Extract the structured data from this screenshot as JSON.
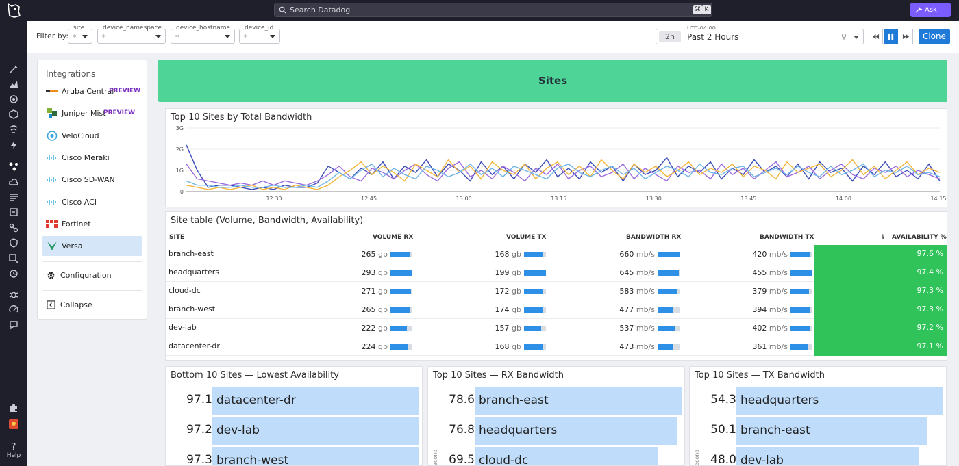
{
  "topbar": {
    "search_placeholder": "Search Datadog",
    "kbd_cmd": "⌘",
    "kbd_k": "K",
    "ask_label": "Ask Bits"
  },
  "filters": {
    "label": "Filter by:",
    "vars": [
      {
        "name": "site",
        "value": "*"
      },
      {
        "name": "device_namespace",
        "value": "*"
      },
      {
        "name": "device_hostname",
        "value": "*"
      },
      {
        "name": "device_id",
        "value": "*"
      }
    ]
  },
  "time": {
    "timezone": "UTC-04:00",
    "badge": "2h",
    "label": "Past 2 Hours",
    "clone_label": "Clone"
  },
  "integrations": {
    "title": "Integrations",
    "items": [
      {
        "name": "Aruba Central",
        "badge": "PREVIEW",
        "logo": "aruba-logo"
      },
      {
        "name": "Juniper Mist",
        "badge": "PREVIEW",
        "logo": "juniper-logo"
      },
      {
        "name": "VeloCloud",
        "badge": "",
        "logo": "velocloud-logo"
      },
      {
        "name": "Cisco Meraki",
        "badge": "",
        "logo": "cisco-logo"
      },
      {
        "name": "Cisco SD-WAN",
        "badge": "",
        "logo": "cisco-logo"
      },
      {
        "name": "Cisco ACI",
        "badge": "",
        "logo": "cisco-logo"
      },
      {
        "name": "Fortinet",
        "badge": "",
        "logo": "fortinet-logo"
      },
      {
        "name": "Versa",
        "badge": "",
        "logo": "versa-logo",
        "active": true
      }
    ],
    "configuration_label": "Configuration",
    "collapse_label": "Collapse"
  },
  "hero": {
    "title": "Sites"
  },
  "timeseries": {
    "title": "Top 10 Sites by Total Bandwidth"
  },
  "chart_data": {
    "type": "line",
    "title": "Top 10 Sites by Total Bandwidth",
    "x_ticks": [
      "12:30",
      "12:45",
      "13:00",
      "13:15",
      "13:30",
      "13:45",
      "14:00",
      "14:15"
    ],
    "y_ticks": [
      "0",
      "1G",
      "2G",
      "3G"
    ],
    "ylim": [
      0,
      3
    ],
    "y_unit": "G",
    "series": [
      {
        "color": "#3b4cb8",
        "values": [
          2.2,
          1.0,
          0.2,
          0.3,
          0.3,
          0.2,
          0.1,
          0.2,
          0.1,
          0.3,
          0.2,
          0.2,
          0.4,
          1.2,
          0.9,
          0.6,
          1.1,
          0.8,
          1.4,
          0.6,
          1.2,
          0.9,
          1.5,
          0.7,
          1.3,
          1.0,
          0.5,
          1.4,
          0.8,
          1.2,
          0.6,
          1.3,
          0.9,
          1.5,
          0.7,
          1.1,
          0.6,
          1.4,
          0.9,
          1.2,
          0.5,
          1.3,
          0.8,
          1.0,
          1.6,
          0.7,
          1.2,
          0.9,
          1.4,
          0.6,
          1.1,
          0.8,
          1.5,
          0.9,
          1.2,
          0.7,
          1.3,
          0.6,
          1.4,
          0.9,
          1.1,
          0.5,
          1.2,
          0.8,
          1.4,
          0.7,
          1.0,
          0.6,
          1.3,
          0.5
        ]
      },
      {
        "color": "#9b6ae0",
        "values": [
          1.3,
          0.6,
          0.5,
          0.4,
          0.3,
          0.4,
          0.3,
          0.5,
          0.3,
          0.5,
          0.4,
          0.3,
          0.5,
          0.8,
          1.2,
          0.7,
          0.5,
          1.1,
          0.9,
          0.6,
          1.0,
          1.3,
          0.8,
          0.5,
          1.1,
          1.4,
          0.7,
          1.0,
          0.6,
          1.2,
          0.9,
          0.5,
          1.1,
          0.8,
          1.3,
          0.6,
          1.0,
          1.2,
          0.7,
          0.9,
          1.3,
          0.6,
          1.1,
          0.8,
          0.5,
          1.2,
          0.9,
          1.0,
          0.6,
          1.3,
          0.8,
          1.1,
          0.6,
          1.0,
          1.4,
          0.7,
          0.9,
          1.2,
          0.6,
          1.0,
          1.3,
          0.8,
          0.6,
          1.1,
          0.9,
          1.2,
          0.7,
          1.0,
          0.8,
          0.6
        ]
      },
      {
        "color": "#f4b63a",
        "values": [
          0.3,
          0.2,
          0.1,
          0.2,
          0.1,
          0.2,
          0.3,
          0.1,
          0.2,
          0.1,
          0.3,
          0.2,
          0.1,
          0.3,
          0.7,
          1.0,
          1.4,
          0.8,
          1.2,
          0.9,
          0.5,
          1.3,
          1.0,
          0.7,
          1.5,
          0.9,
          1.2,
          0.6,
          1.4,
          1.0,
          0.8,
          1.3,
          0.6,
          1.1,
          1.4,
          0.8,
          1.2,
          0.7,
          1.5,
          1.0,
          0.6,
          1.3,
          0.9,
          1.2,
          0.7,
          1.0,
          1.4,
          0.8,
          1.1,
          0.9,
          1.3,
          0.7,
          1.2,
          1.0,
          0.6,
          1.4,
          0.9,
          1.1,
          1.3,
          0.7,
          1.0,
          1.5,
          0.8,
          1.2,
          0.6,
          1.0,
          1.4,
          0.8,
          1.1,
          0.9
        ]
      },
      {
        "color": "#6fb5e8",
        "values": [
          0.5,
          0.3,
          0.3,
          0.2,
          0.2,
          0.3,
          0.2,
          0.2,
          0.3,
          0.2,
          0.2,
          0.3,
          0.2,
          0.5,
          0.9,
          0.6,
          1.0,
          1.3,
          0.7,
          1.1,
          0.8,
          0.6,
          1.2,
          1.0,
          0.7,
          0.9,
          1.3,
          0.8,
          1.1,
          0.7,
          1.2,
          1.0,
          0.8,
          0.6,
          1.1,
          1.3,
          0.9,
          0.7,
          1.0,
          1.2,
          0.8,
          1.1,
          0.6,
          0.9,
          1.2,
          1.0,
          0.7,
          1.3,
          0.9,
          0.8,
          1.1,
          1.2,
          0.7,
          0.9,
          1.1,
          0.8,
          1.2,
          0.9,
          0.7,
          1.2,
          0.8,
          1.0,
          1.3,
          0.7,
          1.0,
          0.9,
          1.2,
          0.8,
          0.9,
          0.7
        ]
      }
    ]
  },
  "site_table": {
    "title": "Site table (Volume, Bandwidth, Availability)",
    "headers": [
      "SITE",
      "VOLUME RX",
      "VOLUME TX",
      "BANDWIDTH RX",
      "BANDWIDTH TX",
      "AVAILABILITY %"
    ],
    "rows": [
      {
        "site": "branch-east",
        "vrx": "265",
        "vrx_u": "gb",
        "vrx_f": 0.9,
        "vtx": "168",
        "vtx_u": "gb",
        "vtx_f": 0.85,
        "brx": "660",
        "brx_u": "mb/s",
        "brx_f": 1.0,
        "btx": "420",
        "btx_u": "mb/s",
        "btx_f": 0.92,
        "avail": "97.6 %"
      },
      {
        "site": "headquarters",
        "vrx": "293",
        "vrx_u": "gb",
        "vrx_f": 1.0,
        "vtx": "199",
        "vtx_u": "gb",
        "vtx_f": 1.0,
        "brx": "645",
        "brx_u": "mb/s",
        "brx_f": 0.98,
        "btx": "455",
        "btx_u": "mb/s",
        "btx_f": 1.0,
        "avail": "97.4 %"
      },
      {
        "site": "cloud-dc",
        "vrx": "271",
        "vrx_u": "gb",
        "vrx_f": 0.93,
        "vtx": "172",
        "vtx_u": "gb",
        "vtx_f": 0.86,
        "brx": "583",
        "brx_u": "mb/s",
        "brx_f": 0.88,
        "btx": "379",
        "btx_u": "mb/s",
        "btx_f": 0.83,
        "avail": "97.3 %"
      },
      {
        "site": "branch-west",
        "vrx": "265",
        "vrx_u": "gb",
        "vrx_f": 0.9,
        "vtx": "174",
        "vtx_u": "gb",
        "vtx_f": 0.87,
        "brx": "477",
        "brx_u": "mb/s",
        "brx_f": 0.72,
        "btx": "394",
        "btx_u": "mb/s",
        "btx_f": 0.87,
        "avail": "97.3 %"
      },
      {
        "site": "dev-lab",
        "vrx": "222",
        "vrx_u": "gb",
        "vrx_f": 0.76,
        "vtx": "157",
        "vtx_u": "gb",
        "vtx_f": 0.79,
        "brx": "537",
        "brx_u": "mb/s",
        "brx_f": 0.81,
        "btx": "402",
        "btx_u": "mb/s",
        "btx_f": 0.88,
        "avail": "97.2 %"
      },
      {
        "site": "datacenter-dr",
        "vrx": "224",
        "vrx_u": "gb",
        "vrx_f": 0.77,
        "vtx": "168",
        "vtx_u": "gb",
        "vtx_f": 0.84,
        "brx": "473",
        "brx_u": "mb/s",
        "brx_f": 0.72,
        "btx": "361",
        "btx_u": "mb/s",
        "btx_f": 0.79,
        "avail": "97.1 %"
      }
    ]
  },
  "toplists": [
    {
      "title": "Bottom 10 Sites — Lowest Availability",
      "axis": "",
      "rows": [
        {
          "value": "97.1",
          "label": "datacenter-dr",
          "fill": 1.0
        },
        {
          "value": "97.2",
          "label": "dev-lab",
          "fill": 1.0
        },
        {
          "value": "97.3",
          "label": "branch-west",
          "fill": 1.0
        }
      ]
    },
    {
      "title": "Top 10 Sites — RX Bandwidth",
      "axis": "econd",
      "rows": [
        {
          "value": "78.6",
          "label": "branch-east",
          "fill": 1.0
        },
        {
          "value": "76.8",
          "label": "headquarters",
          "fill": 0.977
        },
        {
          "value": "69.5",
          "label": "cloud-dc",
          "fill": 0.884
        }
      ]
    },
    {
      "title": "Top 10 Sites — TX Bandwidth",
      "axis": "econd",
      "rows": [
        {
          "value": "54.3",
          "label": "headquarters",
          "fill": 1.0
        },
        {
          "value": "50.1",
          "label": "branch-east",
          "fill": 0.923
        },
        {
          "value": "48.0",
          "label": "dev-lab",
          "fill": 0.884
        }
      ]
    }
  ],
  "rail": {
    "help_label": "Help"
  }
}
